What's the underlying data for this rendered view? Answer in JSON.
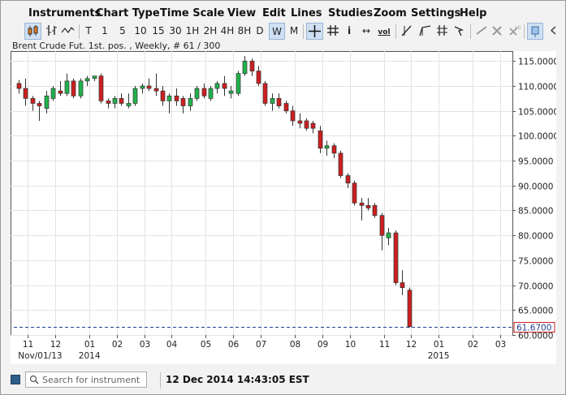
{
  "menu": [
    "Instruments",
    "Chart Type",
    "Time Scale",
    "View",
    "Edit",
    "Lines",
    "Studies",
    "Zoom",
    "Settings",
    "Help"
  ],
  "toolbar": {
    "timescales": [
      "T",
      "1",
      "5",
      "10",
      "15",
      "30",
      "1H",
      "2H",
      "4H",
      "8H",
      "D",
      "W",
      "M"
    ],
    "active_timescale": "W",
    "icons": [
      "candlestick-icon",
      "bar-chart-icon",
      "line-chart-icon",
      "crosshair-icon",
      "grid-icon",
      "info-icon",
      "pan-icon",
      "volume-icon",
      "trendline-icon",
      "fork-icon",
      "fibonacci-icon",
      "cursor-arrow-icon",
      "pencil-icon",
      "delete-icon",
      "delete-all-icon",
      "pin-icon",
      "close-icon"
    ],
    "volume_label": "vol"
  },
  "chart": {
    "title": "Brent Crude Fut. 1st. pos. , Weekly, # 61 / 300",
    "last_price_label": "61.6700"
  },
  "chart_data": {
    "type": "candlestick",
    "title": "Brent Crude Fut. 1st. pos. , Weekly, # 61 / 300",
    "ylim": [
      60,
      117
    ],
    "y_ticks": [
      "115.0000",
      "110.0000",
      "105.0000",
      "100.0000",
      "95.0000",
      "90.0000",
      "85.0000",
      "80.0000",
      "75.0000",
      "70.0000",
      "65.0000",
      "60.0000"
    ],
    "y_tick_values": [
      115,
      110,
      105,
      100,
      95,
      90,
      85,
      80,
      75,
      70,
      65,
      60
    ],
    "x_tick_labels": [
      "11",
      "12",
      "01",
      "02",
      "03",
      "04",
      "05",
      "06",
      "07",
      "08",
      "09",
      "10",
      "11",
      "12",
      "01",
      "02",
      "03"
    ],
    "x_sub_labels": [
      "Nov/01/13",
      "2014",
      "2015"
    ],
    "last_price": 61.67,
    "colors": {
      "up": "#22b14c",
      "down": "#cc1f1f",
      "wick": "#333333",
      "last_price_line": "#1f3f8f"
    },
    "candles": [
      {
        "o": 110.5,
        "h": 111.2,
        "l": 108.5,
        "c": 109.5
      },
      {
        "o": 109.5,
        "h": 111.5,
        "l": 106.0,
        "c": 107.5
      },
      {
        "o": 107.5,
        "h": 108.0,
        "l": 105.0,
        "c": 106.5
      },
      {
        "o": 106.5,
        "h": 107.0,
        "l": 103.0,
        "c": 106.0
      },
      {
        "o": 105.5,
        "h": 109.0,
        "l": 104.5,
        "c": 108.0
      },
      {
        "o": 107.5,
        "h": 110.0,
        "l": 107.0,
        "c": 109.5
      },
      {
        "o": 109.0,
        "h": 111.0,
        "l": 108.0,
        "c": 108.5
      },
      {
        "o": 108.5,
        "h": 112.5,
        "l": 108.0,
        "c": 111.0
      },
      {
        "o": 111.0,
        "h": 111.5,
        "l": 107.5,
        "c": 108.0
      },
      {
        "o": 108.0,
        "h": 111.5,
        "l": 107.5,
        "c": 111.0
      },
      {
        "o": 111.0,
        "h": 112.0,
        "l": 110.0,
        "c": 111.5
      },
      {
        "o": 111.5,
        "h": 112.0,
        "l": 111.0,
        "c": 112.0
      },
      {
        "o": 112.0,
        "h": 112.5,
        "l": 106.5,
        "c": 107.0
      },
      {
        "o": 107.0,
        "h": 107.5,
        "l": 105.5,
        "c": 106.5
      },
      {
        "o": 106.5,
        "h": 108.0,
        "l": 105.5,
        "c": 107.5
      },
      {
        "o": 107.5,
        "h": 108.5,
        "l": 106.0,
        "c": 106.5
      },
      {
        "o": 106.0,
        "h": 108.5,
        "l": 105.5,
        "c": 106.5
      },
      {
        "o": 106.5,
        "h": 110.0,
        "l": 106.0,
        "c": 109.5
      },
      {
        "o": 109.5,
        "h": 110.5,
        "l": 108.5,
        "c": 110.0
      },
      {
        "o": 110.0,
        "h": 111.5,
        "l": 109.0,
        "c": 109.5
      },
      {
        "o": 109.5,
        "h": 112.5,
        "l": 108.0,
        "c": 109.0
      },
      {
        "o": 109.0,
        "h": 110.0,
        "l": 106.0,
        "c": 107.0
      },
      {
        "o": 107.0,
        "h": 108.5,
        "l": 104.5,
        "c": 108.0
      },
      {
        "o": 108.0,
        "h": 109.5,
        "l": 106.0,
        "c": 107.0
      },
      {
        "o": 107.5,
        "h": 108.0,
        "l": 104.5,
        "c": 106.0
      },
      {
        "o": 106.0,
        "h": 108.5,
        "l": 105.0,
        "c": 107.5
      },
      {
        "o": 107.5,
        "h": 110.0,
        "l": 107.0,
        "c": 109.5
      },
      {
        "o": 109.5,
        "h": 110.5,
        "l": 107.5,
        "c": 108.0
      },
      {
        "o": 107.5,
        "h": 110.0,
        "l": 107.0,
        "c": 109.5
      },
      {
        "o": 109.5,
        "h": 111.0,
        "l": 108.5,
        "c": 110.5
      },
      {
        "o": 110.5,
        "h": 112.0,
        "l": 108.0,
        "c": 109.5
      },
      {
        "o": 108.5,
        "h": 110.0,
        "l": 107.5,
        "c": 109.0
      },
      {
        "o": 108.5,
        "h": 113.0,
        "l": 108.0,
        "c": 112.5
      },
      {
        "o": 112.5,
        "h": 116.0,
        "l": 112.0,
        "c": 115.0
      },
      {
        "o": 115.0,
        "h": 115.5,
        "l": 112.0,
        "c": 113.0
      },
      {
        "o": 113.0,
        "h": 114.0,
        "l": 110.0,
        "c": 110.5
      },
      {
        "o": 110.5,
        "h": 111.0,
        "l": 106.0,
        "c": 106.5
      },
      {
        "o": 106.5,
        "h": 108.5,
        "l": 105.0,
        "c": 107.5
      },
      {
        "o": 107.5,
        "h": 108.5,
        "l": 105.5,
        "c": 106.0
      },
      {
        "o": 106.5,
        "h": 107.0,
        "l": 104.5,
        "c": 105.0
      },
      {
        "o": 105.0,
        "h": 106.0,
        "l": 102.0,
        "c": 103.0
      },
      {
        "o": 103.0,
        "h": 104.5,
        "l": 101.5,
        "c": 102.5
      },
      {
        "o": 103.0,
        "h": 103.5,
        "l": 101.0,
        "c": 101.5
      },
      {
        "o": 102.5,
        "h": 103.0,
        "l": 100.5,
        "c": 101.5
      },
      {
        "o": 101.0,
        "h": 102.0,
        "l": 96.5,
        "c": 97.5
      },
      {
        "o": 97.5,
        "h": 99.0,
        "l": 96.0,
        "c": 98.0
      },
      {
        "o": 98.0,
        "h": 98.5,
        "l": 95.5,
        "c": 96.5
      },
      {
        "o": 96.5,
        "h": 97.0,
        "l": 91.5,
        "c": 92.0
      },
      {
        "o": 92.0,
        "h": 92.5,
        "l": 89.5,
        "c": 90.5
      },
      {
        "o": 90.5,
        "h": 91.0,
        "l": 86.0,
        "c": 86.5
      },
      {
        "o": 86.5,
        "h": 87.5,
        "l": 83.0,
        "c": 86.0
      },
      {
        "o": 86.0,
        "h": 87.5,
        "l": 85.0,
        "c": 85.5
      },
      {
        "o": 86.0,
        "h": 86.5,
        "l": 83.5,
        "c": 84.0
      },
      {
        "o": 84.0,
        "h": 84.5,
        "l": 77.0,
        "c": 80.0
      },
      {
        "o": 79.5,
        "h": 81.5,
        "l": 78.0,
        "c": 80.5
      },
      {
        "o": 80.5,
        "h": 81.0,
        "l": 70.0,
        "c": 70.5
      },
      {
        "o": 70.5,
        "h": 73.0,
        "l": 68.0,
        "c": 69.5
      },
      {
        "o": 69.0,
        "h": 69.5,
        "l": 61.5,
        "c": 61.67
      }
    ]
  },
  "status": {
    "search_placeholder": "Search for instrument",
    "timestamp": "12 Dec 2014 14:43:05 EST"
  }
}
